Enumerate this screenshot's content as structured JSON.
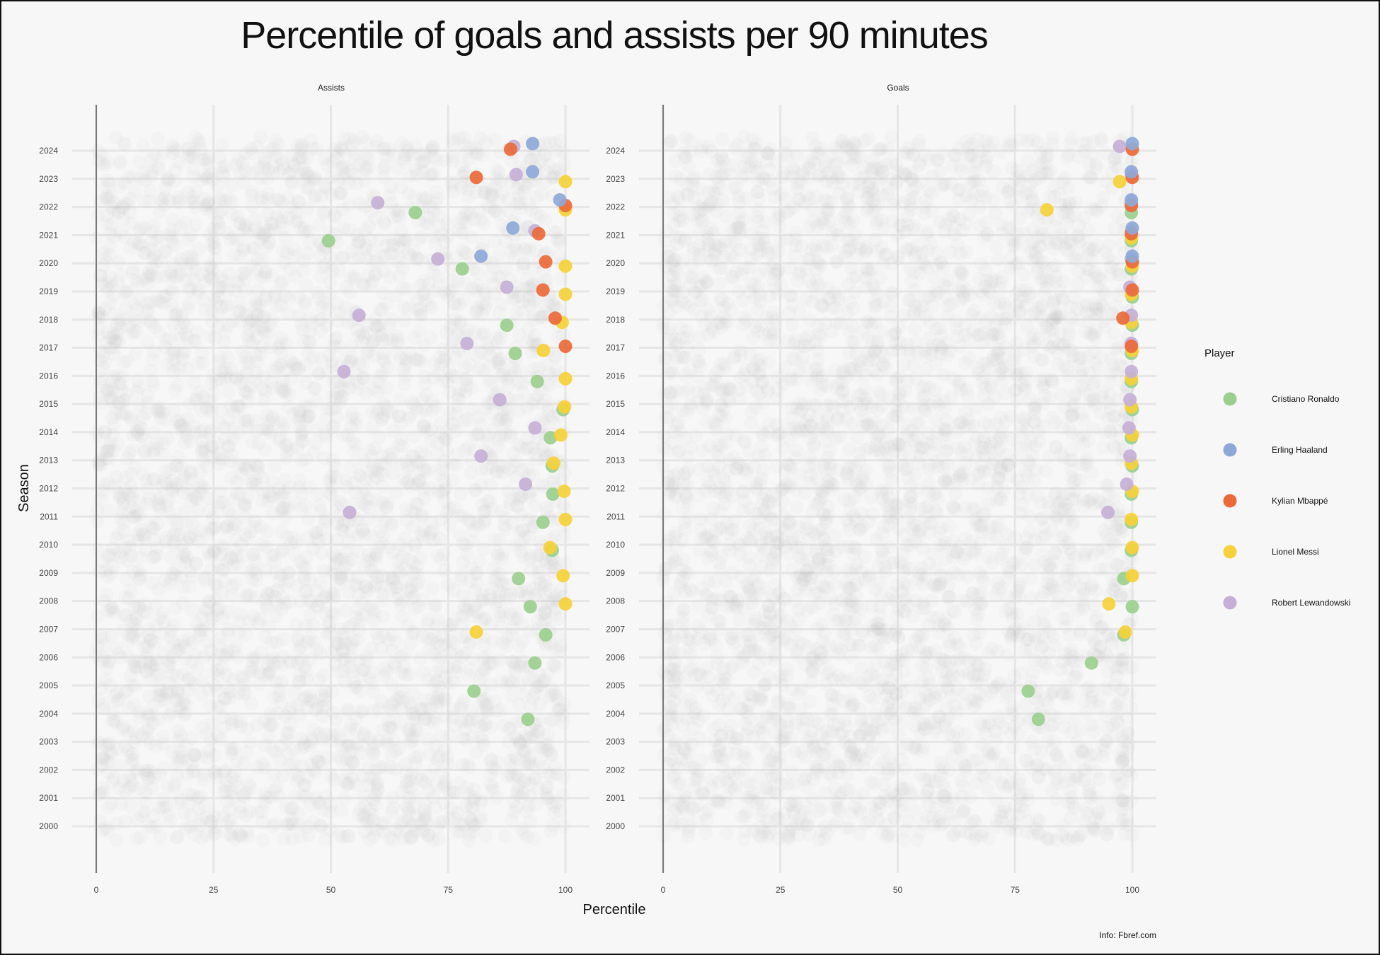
{
  "chart_data": {
    "type": "scatter",
    "title": "Percentile of goals and assists per 90 minutes",
    "xlabel": "Percentile",
    "ylabel": "Season",
    "caption": "Info: Fbref.com",
    "legend_title": "Player",
    "legend_position": "right",
    "xlim": [
      0,
      100
    ],
    "x_ticks": [
      "0",
      "25",
      "50",
      "75",
      "100"
    ],
    "seasons": [
      "2000",
      "2001",
      "2002",
      "2003",
      "2004",
      "2005",
      "2006",
      "2007",
      "2008",
      "2009",
      "2010",
      "2011",
      "2012",
      "2013",
      "2014",
      "2015",
      "2016",
      "2017",
      "2018",
      "2019",
      "2020",
      "2021",
      "2022",
      "2023",
      "2024"
    ],
    "background_points": "all other players shown as faint grey points for every season",
    "series": [
      {
        "name": "Cristiano Ronaldo",
        "color": "#9ccf8e"
      },
      {
        "name": "Erling Haaland",
        "color": "#8ea9d8"
      },
      {
        "name": "Kylian Mbappé",
        "color": "#ec6a3a"
      },
      {
        "name": "Lionel Messi",
        "color": "#f6d13a"
      },
      {
        "name": "Robert Lewandowski",
        "color": "#c4b0d6"
      }
    ],
    "panels": [
      {
        "facet": "Assists",
        "points": [
          {
            "player": "Cristiano Ronaldo",
            "season": 2004,
            "x": 92
          },
          {
            "player": "Cristiano Ronaldo",
            "season": 2005,
            "x": 80.5
          },
          {
            "player": "Cristiano Ronaldo",
            "season": 2006,
            "x": 93.5
          },
          {
            "player": "Cristiano Ronaldo",
            "season": 2007,
            "x": 95.8
          },
          {
            "player": "Cristiano Ronaldo",
            "season": 2008,
            "x": 92.5
          },
          {
            "player": "Cristiano Ronaldo",
            "season": 2009,
            "x": 90
          },
          {
            "player": "Cristiano Ronaldo",
            "season": 2010,
            "x": 97.2
          },
          {
            "player": "Cristiano Ronaldo",
            "season": 2011,
            "x": 95.2
          },
          {
            "player": "Cristiano Ronaldo",
            "season": 2012,
            "x": 97.3
          },
          {
            "player": "Cristiano Ronaldo",
            "season": 2013,
            "x": 97.2
          },
          {
            "player": "Cristiano Ronaldo",
            "season": 2014,
            "x": 96.8
          },
          {
            "player": "Cristiano Ronaldo",
            "season": 2015,
            "x": 99.5
          },
          {
            "player": "Cristiano Ronaldo",
            "season": 2016,
            "x": 94
          },
          {
            "player": "Cristiano Ronaldo",
            "season": 2017,
            "x": 89.3
          },
          {
            "player": "Cristiano Ronaldo",
            "season": 2018,
            "x": 87.5
          },
          {
            "player": "Cristiano Ronaldo",
            "season": 2020,
            "x": 78
          },
          {
            "player": "Cristiano Ronaldo",
            "season": 2021,
            "x": 49.5
          },
          {
            "player": "Cristiano Ronaldo",
            "season": 2022,
            "x": 68
          },
          {
            "player": "Lionel Messi",
            "season": 2007,
            "x": 81
          },
          {
            "player": "Lionel Messi",
            "season": 2008,
            "x": 100
          },
          {
            "player": "Lionel Messi",
            "season": 2009,
            "x": 99.5
          },
          {
            "player": "Lionel Messi",
            "season": 2010,
            "x": 96.7
          },
          {
            "player": "Lionel Messi",
            "season": 2011,
            "x": 100
          },
          {
            "player": "Lionel Messi",
            "season": 2012,
            "x": 99.7
          },
          {
            "player": "Lionel Messi",
            "season": 2013,
            "x": 97.5
          },
          {
            "player": "Lionel Messi",
            "season": 2014,
            "x": 99
          },
          {
            "player": "Lionel Messi",
            "season": 2015,
            "x": 99.8
          },
          {
            "player": "Lionel Messi",
            "season": 2016,
            "x": 100
          },
          {
            "player": "Lionel Messi",
            "season": 2017,
            "x": 95.3
          },
          {
            "player": "Lionel Messi",
            "season": 2018,
            "x": 99.3
          },
          {
            "player": "Lionel Messi",
            "season": 2019,
            "x": 100
          },
          {
            "player": "Lionel Messi",
            "season": 2020,
            "x": 100
          },
          {
            "player": "Lionel Messi",
            "season": 2022,
            "x": 100
          },
          {
            "player": "Lionel Messi",
            "season": 2023,
            "x": 100
          },
          {
            "player": "Robert Lewandowski",
            "season": 2011,
            "x": 54
          },
          {
            "player": "Robert Lewandowski",
            "season": 2012,
            "x": 91.5
          },
          {
            "player": "Robert Lewandowski",
            "season": 2013,
            "x": 82
          },
          {
            "player": "Robert Lewandowski",
            "season": 2014,
            "x": 93.5
          },
          {
            "player": "Robert Lewandowski",
            "season": 2015,
            "x": 86
          },
          {
            "player": "Robert Lewandowski",
            "season": 2016,
            "x": 52.8
          },
          {
            "player": "Robert Lewandowski",
            "season": 2017,
            "x": 79
          },
          {
            "player": "Robert Lewandowski",
            "season": 2018,
            "x": 56
          },
          {
            "player": "Robert Lewandowski",
            "season": 2019,
            "x": 87.5
          },
          {
            "player": "Robert Lewandowski",
            "season": 2020,
            "x": 72.8
          },
          {
            "player": "Robert Lewandowski",
            "season": 2021,
            "x": 93.5
          },
          {
            "player": "Robert Lewandowski",
            "season": 2022,
            "x": 60
          },
          {
            "player": "Robert Lewandowski",
            "season": 2023,
            "x": 89.5
          },
          {
            "player": "Robert Lewandowski",
            "season": 2024,
            "x": 89
          },
          {
            "player": "Kylian Mbappé",
            "season": 2017,
            "x": 100
          },
          {
            "player": "Kylian Mbappé",
            "season": 2018,
            "x": 97.8
          },
          {
            "player": "Kylian Mbappé",
            "season": 2019,
            "x": 95.2
          },
          {
            "player": "Kylian Mbappé",
            "season": 2020,
            "x": 95.8
          },
          {
            "player": "Kylian Mbappé",
            "season": 2021,
            "x": 94.3
          },
          {
            "player": "Kylian Mbappé",
            "season": 2022,
            "x": 100
          },
          {
            "player": "Kylian Mbappé",
            "season": 2023,
            "x": 81
          },
          {
            "player": "Kylian Mbappé",
            "season": 2024,
            "x": 88.3
          },
          {
            "player": "Erling Haaland",
            "season": 2020,
            "x": 82
          },
          {
            "player": "Erling Haaland",
            "season": 2021,
            "x": 88.8
          },
          {
            "player": "Erling Haaland",
            "season": 2022,
            "x": 98.8
          },
          {
            "player": "Erling Haaland",
            "season": 2023,
            "x": 93
          },
          {
            "player": "Erling Haaland",
            "season": 2024,
            "x": 93
          }
        ]
      },
      {
        "facet": "Goals",
        "points": [
          {
            "player": "Cristiano Ronaldo",
            "season": 2004,
            "x": 80
          },
          {
            "player": "Cristiano Ronaldo",
            "season": 2005,
            "x": 77.8
          },
          {
            "player": "Cristiano Ronaldo",
            "season": 2006,
            "x": 91.3
          },
          {
            "player": "Cristiano Ronaldo",
            "season": 2007,
            "x": 98.2
          },
          {
            "player": "Cristiano Ronaldo",
            "season": 2008,
            "x": 100
          },
          {
            "player": "Cristiano Ronaldo",
            "season": 2009,
            "x": 98.2
          },
          {
            "player": "Cristiano Ronaldo",
            "season": 2010,
            "x": 99.8
          },
          {
            "player": "Cristiano Ronaldo",
            "season": 2011,
            "x": 99.8
          },
          {
            "player": "Cristiano Ronaldo",
            "season": 2012,
            "x": 99.8
          },
          {
            "player": "Cristiano Ronaldo",
            "season": 2013,
            "x": 100
          },
          {
            "player": "Cristiano Ronaldo",
            "season": 2014,
            "x": 99.8
          },
          {
            "player": "Cristiano Ronaldo",
            "season": 2015,
            "x": 100
          },
          {
            "player": "Cristiano Ronaldo",
            "season": 2016,
            "x": 99.8
          },
          {
            "player": "Cristiano Ronaldo",
            "season": 2017,
            "x": 99.8
          },
          {
            "player": "Cristiano Ronaldo",
            "season": 2018,
            "x": 100
          },
          {
            "player": "Cristiano Ronaldo",
            "season": 2019,
            "x": 100
          },
          {
            "player": "Cristiano Ronaldo",
            "season": 2020,
            "x": 99.8
          },
          {
            "player": "Cristiano Ronaldo",
            "season": 2021,
            "x": 99.8
          },
          {
            "player": "Cristiano Ronaldo",
            "season": 2022,
            "x": 99.8
          },
          {
            "player": "Lionel Messi",
            "season": 2007,
            "x": 98.5
          },
          {
            "player": "Lionel Messi",
            "season": 2008,
            "x": 95
          },
          {
            "player": "Lionel Messi",
            "season": 2009,
            "x": 100
          },
          {
            "player": "Lionel Messi",
            "season": 2010,
            "x": 100
          },
          {
            "player": "Lionel Messi",
            "season": 2011,
            "x": 99.8
          },
          {
            "player": "Lionel Messi",
            "season": 2012,
            "x": 100
          },
          {
            "player": "Lionel Messi",
            "season": 2013,
            "x": 99.8
          },
          {
            "player": "Lionel Messi",
            "season": 2014,
            "x": 100
          },
          {
            "player": "Lionel Messi",
            "season": 2015,
            "x": 99.8
          },
          {
            "player": "Lionel Messi",
            "season": 2016,
            "x": 99.8
          },
          {
            "player": "Lionel Messi",
            "season": 2017,
            "x": 100
          },
          {
            "player": "Lionel Messi",
            "season": 2018,
            "x": 99.8
          },
          {
            "player": "Lionel Messi",
            "season": 2019,
            "x": 99.8
          },
          {
            "player": "Lionel Messi",
            "season": 2020,
            "x": 100
          },
          {
            "player": "Lionel Messi",
            "season": 2021,
            "x": 99.8
          },
          {
            "player": "Lionel Messi",
            "season": 2022,
            "x": 81.8
          },
          {
            "player": "Lionel Messi",
            "season": 2023,
            "x": 97.3
          },
          {
            "player": "Robert Lewandowski",
            "season": 2011,
            "x": 94.8
          },
          {
            "player": "Robert Lewandowski",
            "season": 2012,
            "x": 98.8
          },
          {
            "player": "Robert Lewandowski",
            "season": 2013,
            "x": 99.5
          },
          {
            "player": "Robert Lewandowski",
            "season": 2014,
            "x": 99.3
          },
          {
            "player": "Robert Lewandowski",
            "season": 2015,
            "x": 99.5
          },
          {
            "player": "Robert Lewandowski",
            "season": 2016,
            "x": 99.8
          },
          {
            "player": "Robert Lewandowski",
            "season": 2017,
            "x": 99.8
          },
          {
            "player": "Robert Lewandowski",
            "season": 2018,
            "x": 99.8
          },
          {
            "player": "Robert Lewandowski",
            "season": 2019,
            "x": 99.5
          },
          {
            "player": "Robert Lewandowski",
            "season": 2020,
            "x": 99.8
          },
          {
            "player": "Robert Lewandowski",
            "season": 2021,
            "x": 99.8
          },
          {
            "player": "Robert Lewandowski",
            "season": 2022,
            "x": 99.8
          },
          {
            "player": "Robert Lewandowski",
            "season": 2023,
            "x": 99.8
          },
          {
            "player": "Robert Lewandowski",
            "season": 2024,
            "x": 97.3
          },
          {
            "player": "Kylian Mbappé",
            "season": 2017,
            "x": 99.8
          },
          {
            "player": "Kylian Mbappé",
            "season": 2018,
            "x": 98
          },
          {
            "player": "Kylian Mbappé",
            "season": 2019,
            "x": 100
          },
          {
            "player": "Kylian Mbappé",
            "season": 2020,
            "x": 100
          },
          {
            "player": "Kylian Mbappé",
            "season": 2021,
            "x": 99.8
          },
          {
            "player": "Kylian Mbappé",
            "season": 2022,
            "x": 99.8
          },
          {
            "player": "Kylian Mbappé",
            "season": 2023,
            "x": 100
          },
          {
            "player": "Kylian Mbappé",
            "season": 2024,
            "x": 100
          },
          {
            "player": "Erling Haaland",
            "season": 2020,
            "x": 100
          },
          {
            "player": "Erling Haaland",
            "season": 2021,
            "x": 100
          },
          {
            "player": "Erling Haaland",
            "season": 2022,
            "x": 99.8
          },
          {
            "player": "Erling Haaland",
            "season": 2023,
            "x": 99.8
          },
          {
            "player": "Erling Haaland",
            "season": 2024,
            "x": 100
          }
        ]
      }
    ]
  }
}
